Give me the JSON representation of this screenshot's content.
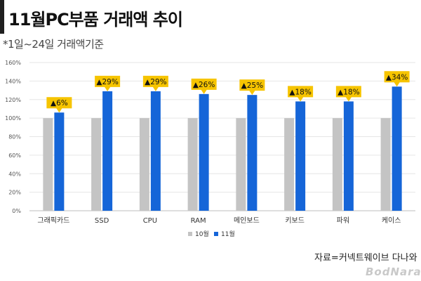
{
  "header": {
    "title": "11월PC부품 거래액 추이",
    "subtitle": "*1일~24일 거래액기준"
  },
  "footer": {
    "source": "자료=커넥트웨이브 다나와",
    "logo": "BodNara"
  },
  "colors": {
    "october": "#c4c4c4",
    "november": "#1565d8",
    "callout": "#f6c400",
    "grid": "#e6e6e6"
  },
  "chart_data": {
    "type": "bar",
    "categories": [
      "그래픽카드",
      "SSD",
      "CPU",
      "RAM",
      "메인보드",
      "키보드",
      "파워",
      "케이스"
    ],
    "series": [
      {
        "name": "10월",
        "values": [
          100,
          100,
          100,
          100,
          100,
          100,
          100,
          100
        ]
      },
      {
        "name": "11월",
        "values": [
          106,
          129,
          129,
          126,
          125,
          118,
          118,
          134
        ]
      }
    ],
    "annotations": [
      "▲6%",
      "▲29%",
      "▲29%",
      "▲26%",
      "▲25%",
      "▲18%",
      "▲18%",
      "▲34%"
    ],
    "ylim": [
      0,
      160
    ],
    "yticks": [
      "0%",
      "20%",
      "40%",
      "60%",
      "80%",
      "100%",
      "120%",
      "140%",
      "160%"
    ],
    "grid": true,
    "legend_position": "bottom"
  }
}
